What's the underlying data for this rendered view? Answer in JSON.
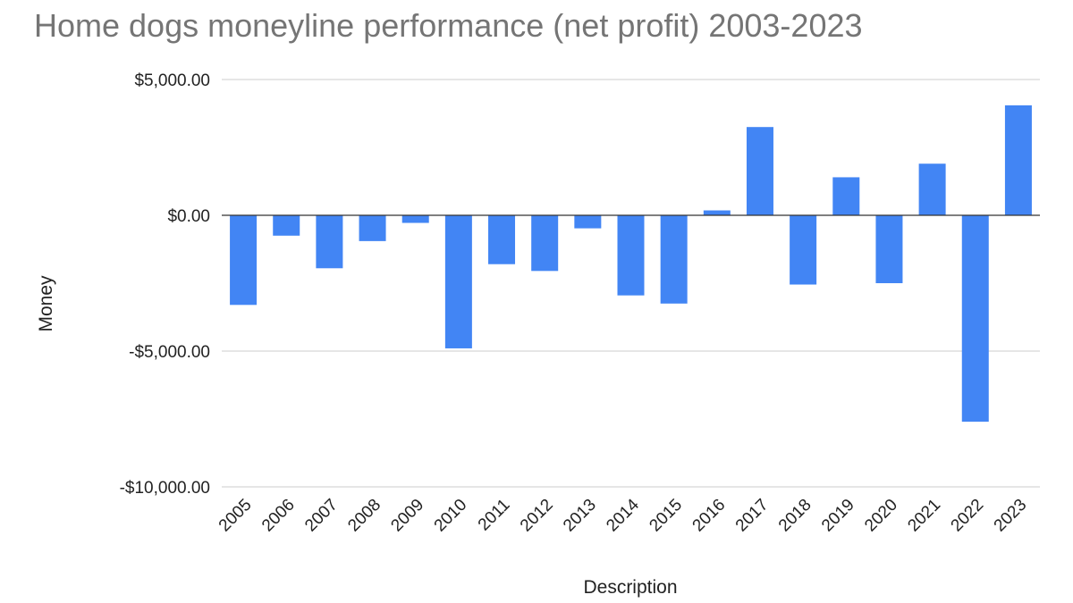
{
  "chart_data": {
    "type": "bar",
    "title": "Home dogs moneyline performance (net profit) 2003-2023",
    "xlabel": "Description",
    "ylabel": "Money",
    "categories": [
      "2005",
      "2006",
      "2007",
      "2008",
      "2009",
      "2010",
      "2011",
      "2012",
      "2013",
      "2014",
      "2015",
      "2016",
      "2017",
      "2018",
      "2019",
      "2020",
      "2021",
      "2022",
      "2023"
    ],
    "values": [
      -3300,
      -750,
      -1950,
      -950,
      -280,
      -4900,
      -1800,
      -2050,
      -480,
      -2950,
      -3250,
      180,
      3250,
      -2550,
      1400,
      -2500,
      1900,
      -7600,
      4050
    ],
    "ylim": [
      -10000,
      5000
    ],
    "yticks": [
      5000,
      0,
      -5000,
      -10000
    ],
    "ytick_labels": [
      "$5,000.00",
      "$0.00",
      "-$5,000.00",
      "-$10,000.00"
    ],
    "grid": true,
    "bar_color": "#4285f4",
    "legend": null
  }
}
